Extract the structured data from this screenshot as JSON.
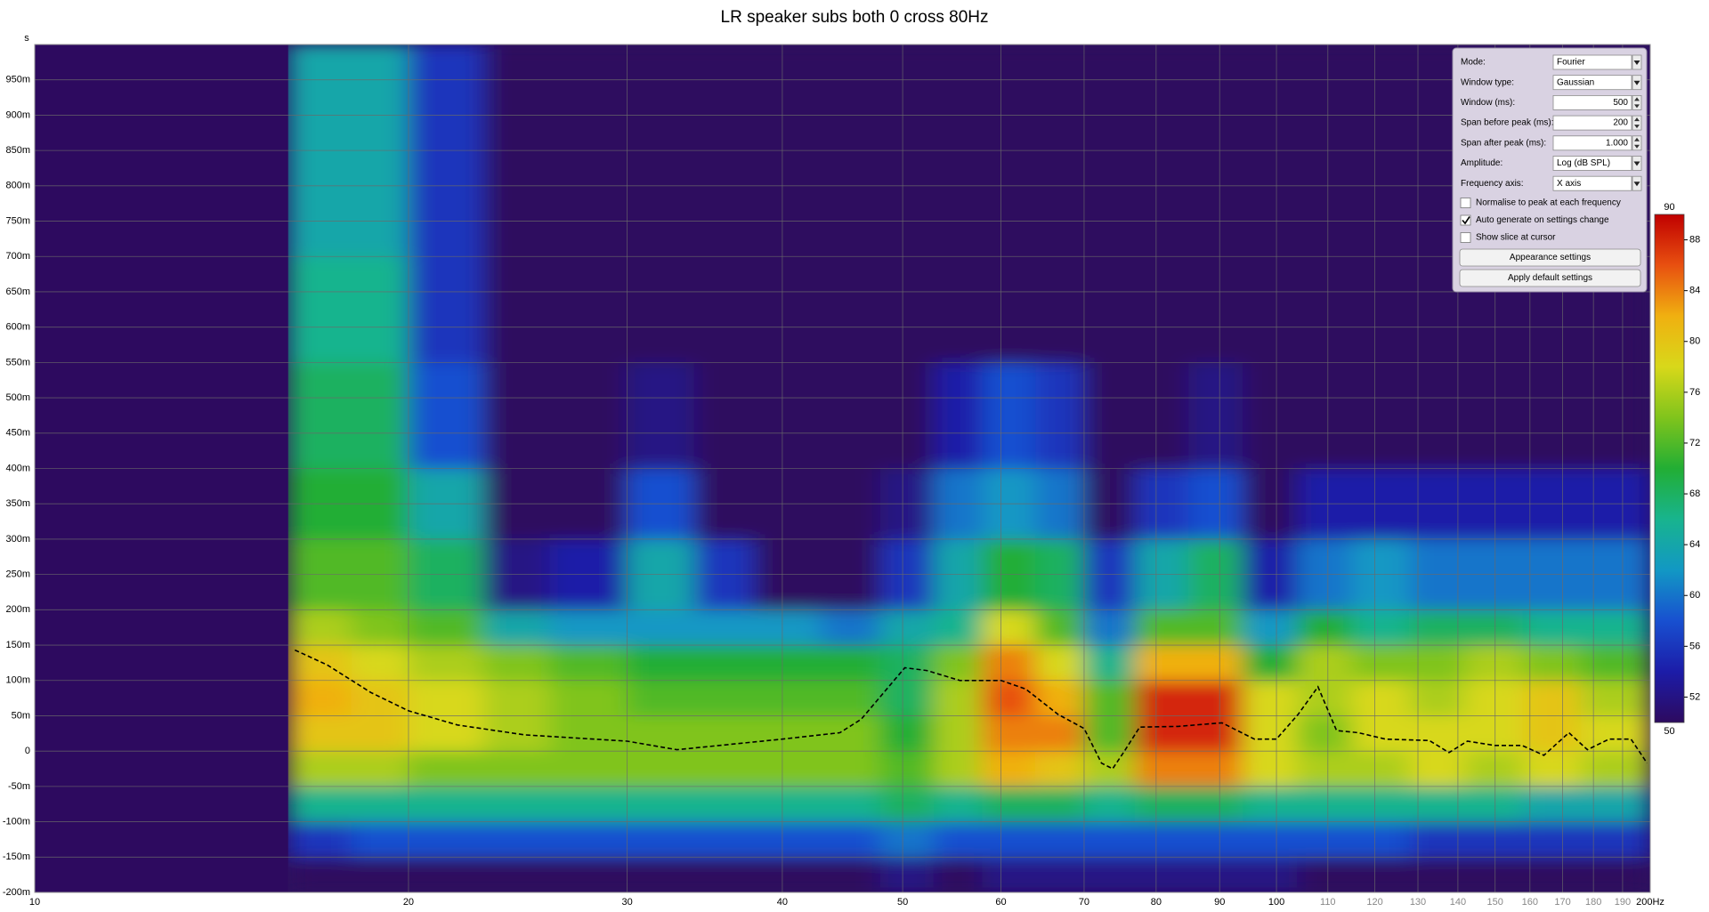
{
  "chart_data": {
    "type": "spectrogram",
    "title": "LR speaker subs both 0 cross 80Hz",
    "y_unit": "s",
    "log_x": true,
    "grid": true,
    "background": "#2d0a5f",
    "xlim": [
      10,
      200
    ],
    "ylim": [
      -0.2,
      1.0
    ],
    "xticks": [
      10,
      20,
      30,
      40,
      50,
      60,
      70,
      80,
      90,
      100,
      110,
      120,
      130,
      140,
      150,
      160,
      170,
      180,
      190,
      {
        "value": 200,
        "label": "200Hz"
      }
    ],
    "yticks": [
      {
        "value": -0.2,
        "label": "-200m"
      },
      {
        "value": -0.15,
        "label": "-150m"
      },
      {
        "value": -0.1,
        "label": "-100m"
      },
      {
        "value": -0.05,
        "label": "-50m"
      },
      0,
      {
        "value": 0.05,
        "label": "50m"
      },
      {
        "value": 0.1,
        "label": "100m"
      },
      {
        "value": 0.15,
        "label": "150m"
      },
      {
        "value": 0.2,
        "label": "200m"
      },
      {
        "value": 0.25,
        "label": "250m"
      },
      {
        "value": 0.3,
        "label": "300m"
      },
      {
        "value": 0.35,
        "label": "350m"
      },
      {
        "value": 0.4,
        "label": "400m"
      },
      {
        "value": 0.45,
        "label": "450m"
      },
      {
        "value": 0.5,
        "label": "500m"
      },
      {
        "value": 0.55,
        "label": "550m"
      },
      {
        "value": 0.6,
        "label": "600m"
      },
      {
        "value": 0.65,
        "label": "650m"
      },
      {
        "value": 0.7,
        "label": "700m"
      },
      {
        "value": 0.75,
        "label": "750m"
      },
      {
        "value": 0.8,
        "label": "800m"
      },
      {
        "value": 0.85,
        "label": "850m"
      },
      {
        "value": 0.9,
        "label": "900m"
      },
      {
        "value": 0.95,
        "label": "950m"
      }
    ],
    "xbins": [
      16,
      18,
      20,
      23,
      26,
      30,
      34,
      38,
      43,
      48,
      53,
      58,
      64,
      70,
      77,
      85,
      94,
      104,
      115,
      128,
      142,
      158,
      176,
      200
    ],
    "ybins": [
      -0.2,
      -0.15,
      -0.1,
      -0.05,
      0,
      0.05,
      0.1,
      0.15,
      0.2,
      0.3,
      0.4,
      0.55,
      0.7,
      1.0
    ],
    "z": [
      [
        50,
        50,
        50,
        50,
        50,
        50,
        50,
        50,
        50,
        52,
        50,
        52,
        52,
        52,
        52,
        52,
        52,
        50,
        50,
        50,
        50,
        50,
        50
      ],
      [
        56,
        58,
        58,
        58,
        58,
        58,
        58,
        58,
        58,
        60,
        58,
        58,
        58,
        58,
        58,
        58,
        58,
        58,
        58,
        56,
        56,
        56,
        56
      ],
      [
        66,
        66,
        66,
        66,
        66,
        66,
        66,
        66,
        66,
        68,
        66,
        68,
        68,
        66,
        68,
        68,
        66,
        66,
        66,
        66,
        66,
        64,
        64
      ],
      [
        76,
        76,
        74,
        74,
        74,
        74,
        74,
        74,
        74,
        72,
        76,
        82,
        80,
        76,
        84,
        84,
        78,
        76,
        76,
        78,
        76,
        78,
        76
      ],
      [
        80,
        80,
        78,
        76,
        74,
        74,
        74,
        74,
        74,
        70,
        76,
        84,
        84,
        72,
        88,
        88,
        78,
        74,
        78,
        78,
        78,
        80,
        78
      ],
      [
        82,
        80,
        78,
        76,
        74,
        72,
        72,
        72,
        72,
        68,
        76,
        86,
        82,
        72,
        88,
        88,
        78,
        76,
        78,
        76,
        78,
        80,
        76
      ],
      [
        80,
        78,
        76,
        74,
        72,
        70,
        70,
        70,
        70,
        68,
        74,
        84,
        78,
        66,
        82,
        82,
        70,
        76,
        74,
        74,
        76,
        74,
        72
      ],
      [
        76,
        74,
        72,
        64,
        62,
        62,
        62,
        62,
        60,
        64,
        66,
        78,
        72,
        60,
        72,
        72,
        62,
        70,
        66,
        68,
        68,
        66,
        66
      ],
      [
        72,
        72,
        68,
        52,
        54,
        64,
        56,
        50,
        50,
        56,
        64,
        70,
        68,
        56,
        64,
        68,
        54,
        60,
        62,
        60,
        60,
        60,
        60
      ],
      [
        70,
        70,
        64,
        50,
        50,
        58,
        50,
        50,
        50,
        52,
        60,
        62,
        60,
        50,
        56,
        58,
        50,
        54,
        54,
        54,
        54,
        54,
        54
      ],
      [
        68,
        68,
        58,
        50,
        50,
        52,
        50,
        50,
        50,
        50,
        54,
        58,
        56,
        50,
        50,
        52,
        50,
        50,
        50,
        50,
        50,
        50,
        50
      ],
      [
        66,
        66,
        56,
        50,
        50,
        50,
        50,
        50,
        50,
        50,
        50,
        50,
        50,
        50,
        50,
        50,
        50,
        50,
        50,
        50,
        50,
        50,
        50
      ],
      [
        64,
        64,
        56,
        50,
        50,
        50,
        50,
        50,
        50,
        50,
        50,
        50,
        50,
        50,
        50,
        50,
        50,
        50,
        50,
        50,
        50,
        50,
        50
      ]
    ],
    "colorbar": {
      "lim": [
        50,
        90
      ],
      "ticks": [
        52,
        56,
        60,
        64,
        68,
        72,
        76,
        80,
        84,
        88
      ],
      "colors": [
        "#2d0a5f",
        "#1c1ca8",
        "#1850d0",
        "#1298c4",
        "#18b48e",
        "#22ae34",
        "#80c41c",
        "#d8d81a",
        "#f0b010",
        "#e85010",
        "#c00000"
      ]
    },
    "series": [
      {
        "color": "#000000",
        "x": [
          16.2,
          17.2,
          18.65,
          20,
          21.9,
          24.8,
          30,
          32.9,
          35.6,
          40,
          44.5,
          46.3,
          50.2,
          52.3,
          55.6,
          60,
          62.8,
          66.7,
          70,
          72.3,
          73.8,
          75.3,
          77.6,
          83.3,
          90.4,
          96,
          100,
          104.1,
          108,
          111.8,
          116.4,
          122.4,
          132.8,
          137.7,
          142.5,
          149.9,
          157.7,
          164.2,
          172,
          178,
          185.3,
          193,
          198.8
        ],
        "values": [
          0.143,
          0.122,
          0.083,
          0.057,
          0.037,
          0.023,
          0.014,
          0.002,
          0.008,
          0.017,
          0.026,
          0.045,
          0.118,
          0.114,
          0.1,
          0.1,
          0.088,
          0.052,
          0.032,
          -0.017,
          -0.025,
          -0.002,
          0.034,
          0.035,
          0.04,
          0.017,
          0.017,
          0.052,
          0.091,
          0.029,
          0.026,
          0.017,
          0.015,
          -0.002,
          0.014,
          0.008,
          0.008,
          -0.006,
          0.026,
          0.002,
          0.017,
          0.017,
          -0.017
        ]
      }
    ]
  },
  "panel": {
    "fields": [
      {
        "label": "Mode:",
        "value": "Fourier",
        "control": "dropdown"
      },
      {
        "label": "Window type:",
        "value": "Gaussian",
        "control": "dropdown"
      },
      {
        "label": "Window (ms):",
        "value": "500",
        "control": "spinner"
      },
      {
        "label": "Span before peak (ms):",
        "value": "200",
        "control": "spinner"
      },
      {
        "label": "Span after peak (ms):",
        "value": "1.000",
        "control": "spinner"
      },
      {
        "label": "Amplitude:",
        "value": "Log (dB SPL)",
        "control": "dropdown"
      },
      {
        "label": "Frequency axis:",
        "value": "X axis",
        "control": "dropdown"
      }
    ],
    "checkboxes": [
      {
        "label": "Normalise to peak at each frequency",
        "checked": false
      },
      {
        "label": "Auto generate on settings change",
        "checked": true
      },
      {
        "label": "Show slice at cursor",
        "checked": false
      }
    ],
    "buttons": [
      "Appearance settings",
      "Apply default settings"
    ]
  }
}
